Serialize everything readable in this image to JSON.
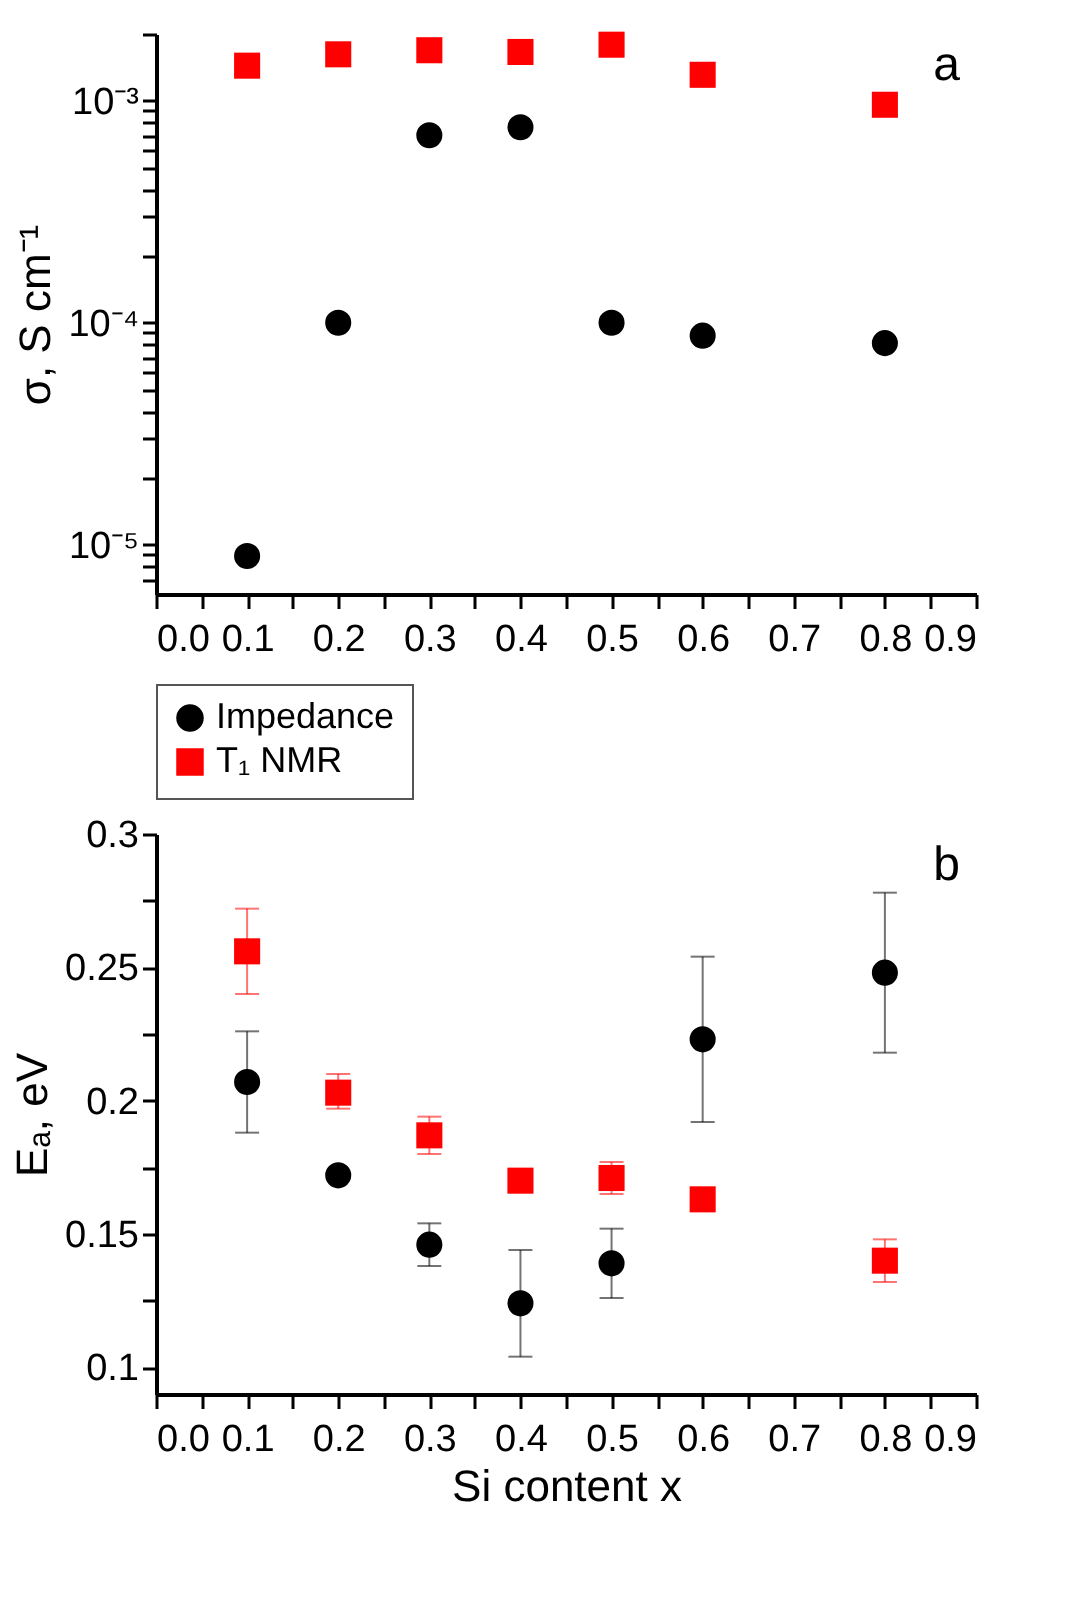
{
  "chart_data": [
    {
      "type": "scatter",
      "annotations": [
        "a"
      ],
      "ylabel": "σ, S cm⁻¹",
      "log": true,
      "grid": false,
      "legend": false,
      "x": [
        0.1,
        0.2,
        0.3,
        0.4,
        0.5,
        0.6,
        0.8
      ],
      "xlim": [
        0,
        0.9
      ],
      "xticks": [
        {
          "value": 0,
          "label": "0.0"
        },
        {
          "value": 0.05,
          "label": null
        },
        {
          "value": 0.1,
          "label": "0.1"
        },
        {
          "value": 0.15,
          "label": null
        },
        {
          "value": 0.2,
          "label": "0.2"
        },
        {
          "value": 0.25,
          "label": null
        },
        {
          "value": 0.3,
          "label": "0.3"
        },
        {
          "value": 0.35,
          "label": null
        },
        {
          "value": 0.4,
          "label": "0.4"
        },
        {
          "value": 0.45,
          "label": null
        },
        {
          "value": 0.5,
          "label": "0.5"
        },
        {
          "value": 0.55,
          "label": null
        },
        {
          "value": 0.6,
          "label": "0.6"
        },
        {
          "value": 0.65,
          "label": null
        },
        {
          "value": 0.7,
          "label": "0.7"
        },
        {
          "value": 0.75,
          "label": null
        },
        {
          "value": 0.8,
          "label": "0.8"
        },
        {
          "value": 0.85,
          "label": null
        },
        {
          "value": 0.9,
          "label": "0.9"
        }
      ],
      "ylim": [
        6e-06,
        0.002
      ],
      "yticks": [
        {
          "value": 7e-06,
          "label": null
        },
        {
          "value": 8e-06,
          "label": null
        },
        {
          "value": 9e-06,
          "label": null
        },
        {
          "value": 1e-05,
          "label": "10⁻⁵"
        },
        {
          "value": 2e-05,
          "label": null
        },
        {
          "value": 3e-05,
          "label": null
        },
        {
          "value": 4e-05,
          "label": null
        },
        {
          "value": 5e-05,
          "label": null
        },
        {
          "value": 6e-05,
          "label": null
        },
        {
          "value": 7e-05,
          "label": null
        },
        {
          "value": 8e-05,
          "label": null
        },
        {
          "value": 9e-05,
          "label": null
        },
        {
          "value": 0.0001,
          "label": "10⁻⁴"
        },
        {
          "value": 0.0002,
          "label": null
        },
        {
          "value": 0.0003,
          "label": null
        },
        {
          "value": 0.0004,
          "label": null
        },
        {
          "value": 0.0005,
          "label": null
        },
        {
          "value": 0.0006,
          "label": null
        },
        {
          "value": 0.0007,
          "label": null
        },
        {
          "value": 0.0008,
          "label": null
        },
        {
          "value": 0.0009,
          "label": null
        },
        {
          "value": 0.001,
          "label": "10⁻³"
        },
        {
          "value": 0.002,
          "label": null
        }
      ],
      "series": [
        {
          "color": "#000000",
          "marker": "circle",
          "values": [
            8.9e-06,
            0.0001,
            0.0007,
            0.00076,
            0.0001,
            8.75e-05,
            8.1e-05
          ]
        },
        {
          "color": "#ff0000",
          "marker": "square",
          "values": [
            0.00144,
            0.00162,
            0.00169,
            0.00166,
            0.00179,
            0.00131,
            0.00096
          ]
        }
      ]
    },
    {
      "type": "scatter",
      "annotations": [
        "b"
      ],
      "xlabel": "Si content x",
      "ylabel": "Eₐ, eV",
      "grid": false,
      "legend": "top",
      "x": [
        0.1,
        0.2,
        0.3,
        0.4,
        0.5,
        0.6,
        0.8
      ],
      "xlim": [
        0,
        0.9
      ],
      "xticks": [
        {
          "value": 0,
          "label": "0.0"
        },
        {
          "value": 0.05,
          "label": null
        },
        {
          "value": 0.1,
          "label": "0.1"
        },
        {
          "value": 0.15,
          "label": null
        },
        {
          "value": 0.2,
          "label": "0.2"
        },
        {
          "value": 0.25,
          "label": null
        },
        {
          "value": 0.3,
          "label": "0.3"
        },
        {
          "value": 0.35,
          "label": null
        },
        {
          "value": 0.4,
          "label": "0.4"
        },
        {
          "value": 0.45,
          "label": null
        },
        {
          "value": 0.5,
          "label": "0.5"
        },
        {
          "value": 0.55,
          "label": null
        },
        {
          "value": 0.6,
          "label": "0.6"
        },
        {
          "value": 0.65,
          "label": null
        },
        {
          "value": 0.7,
          "label": "0.7"
        },
        {
          "value": 0.75,
          "label": null
        },
        {
          "value": 0.8,
          "label": "0.8"
        },
        {
          "value": 0.85,
          "label": null
        },
        {
          "value": 0.9,
          "label": "0.9"
        }
      ],
      "ylim": [
        0.09,
        0.3
      ],
      "yticks": [
        0.1,
        {
          "value": 0.125,
          "label": null
        },
        0.15,
        {
          "value": 0.175,
          "label": null
        },
        0.2,
        {
          "value": 0.225,
          "label": null
        },
        0.25,
        {
          "value": 0.275,
          "label": null
        },
        0.3
      ],
      "series": [
        {
          "name": "Impedance",
          "color": "#000000",
          "marker": "circle",
          "values": [
            0.207,
            0.172,
            0.146,
            0.124,
            0.139,
            0.223,
            0.248
          ],
          "errors": [
            [
              0.188,
              0.226
            ],
            null,
            [
              0.138,
              0.154
            ],
            [
              0.104,
              0.144
            ],
            [
              0.126,
              0.152
            ],
            [
              0.192,
              0.254
            ],
            [
              0.218,
              0.278
            ]
          ]
        },
        {
          "name": "T₁ NMR",
          "color": "#ff0000",
          "marker": "square",
          "values": [
            0.256,
            0.203,
            0.187,
            0.17,
            0.171,
            0.163,
            0.14
          ],
          "errors": [
            [
              0.24,
              0.272
            ],
            [
              0.197,
              0.21
            ],
            [
              0.18,
              0.194
            ],
            null,
            [
              0.165,
              0.177
            ],
            null,
            [
              0.132,
              0.148
            ]
          ]
        }
      ]
    }
  ]
}
